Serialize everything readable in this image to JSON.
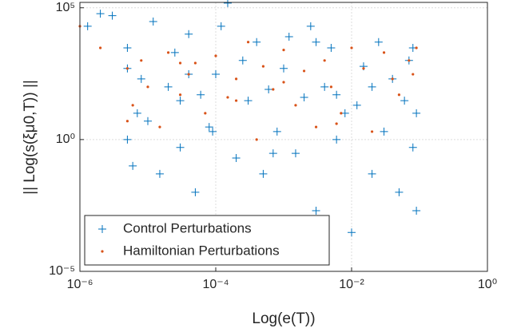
{
  "chart_data": {
    "type": "scatter",
    "xlabel": "Log(e(T))",
    "ylabel": "|| Log(s(ξμ0,T)) ||",
    "xlog": true,
    "ylog": true,
    "grid": true,
    "legend": "lower left",
    "xlim": [
      1e-06,
      1
    ],
    "xticks": [
      {
        "value": 1e-06,
        "label": "10⁻⁶"
      },
      {
        "value": 0.0001,
        "label": "10⁻⁴"
      },
      {
        "value": 0.01,
        "label": "10⁻²"
      },
      {
        "value": 1,
        "label": "10⁰"
      }
    ],
    "ylim": [
      1e-05,
      160000
    ],
    "yticks": [
      {
        "value": 1e-05,
        "label": "10⁻⁵"
      },
      {
        "value": 1,
        "label": "10⁰"
      },
      {
        "value": 100000,
        "label": "10⁵"
      }
    ],
    "series": [
      {
        "name": "Control Perturbations",
        "color": "#0072BD",
        "marker": "plus",
        "x": [
          2e-06,
          1.3e-06,
          3e-06,
          5e-06,
          5e-06,
          6e-06,
          8e-06,
          1e-05,
          1.2e-05,
          1.5e-05,
          2e-05,
          2.5e-05,
          3e-05,
          4e-05,
          5e-05,
          6e-05,
          8e-05,
          0.0001,
          0.00012,
          0.00015,
          0.0002,
          0.00025,
          0.0003,
          0.0004,
          0.0005,
          0.0006,
          0.0008,
          0.001,
          0.0012,
          0.0015,
          0.002,
          0.0025,
          0.003,
          0.004,
          0.005,
          0.006,
          0.008,
          0.01,
          0.012,
          0.015,
          0.02,
          0.025,
          0.03,
          0.04,
          0.05,
          0.06,
          0.07,
          0.08,
          0.09,
          0.09,
          5e-06,
          7e-06,
          3e-05,
          9e-05,
          0.0007,
          0.003,
          0.02,
          0.08,
          4e-05,
          0.006
        ],
        "values": [
          60000,
          20000,
          50000,
          3000,
          1,
          0.1,
          200,
          5,
          30000,
          0.05,
          100,
          2000,
          0.5,
          10000,
          0.01,
          50,
          3,
          300,
          20000,
          150000,
          0.2,
          1000,
          30,
          5000,
          0.05,
          80,
          2,
          500,
          8000,
          0.3,
          40,
          20000,
          0.002,
          100,
          3000,
          1,
          10,
          0.0003,
          20,
          600,
          0.05,
          5000,
          2,
          200,
          0.01,
          30,
          1000,
          0.5,
          10,
          0.002,
          500,
          10,
          30,
          2,
          0.3,
          5000,
          100,
          3000,
          300,
          50
        ]
      },
      {
        "name": "Hamiltonian Perturbations",
        "color": "#D95319",
        "marker": "dot",
        "x": [
          1e-06,
          2e-06,
          5e-06,
          6e-06,
          8e-06,
          1e-05,
          1.5e-05,
          2e-05,
          3e-05,
          4e-05,
          5e-05,
          7e-05,
          0.0001,
          0.00015,
          0.0002,
          0.0003,
          0.0004,
          0.0005,
          0.0007,
          0.001,
          0.0015,
          0.002,
          0.003,
          0.004,
          0.005,
          0.007,
          0.01,
          0.015,
          0.02,
          0.03,
          0.04,
          0.05,
          0.07,
          0.09,
          5e-06,
          3e-05,
          0.0002,
          0.001,
          0.006,
          0.08
        ],
        "values": [
          20000,
          3000,
          500,
          20,
          1000,
          100,
          3,
          2000,
          50,
          300,
          800,
          10,
          1500,
          40,
          200,
          5000,
          1,
          600,
          80,
          2500,
          20,
          400,
          3,
          1000,
          100,
          10,
          3000,
          500,
          2,
          2000,
          200,
          50,
          1000,
          3000,
          5,
          800,
          30,
          150,
          4,
          300
        ]
      }
    ]
  }
}
